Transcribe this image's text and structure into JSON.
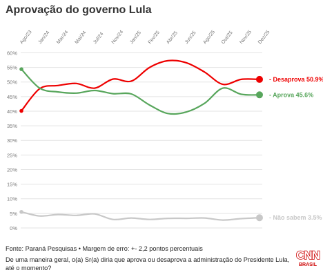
{
  "title": "Aprovação do governo Lula",
  "footer": {
    "source": "Fonte: Paraná Pesquisas • Margem de erro: +- 2,2 pontos percentuais",
    "question": "De uma maneira geral, o(a) Sr(a) diria que aprova ou desaprova a administração do Presidente Lula, até o momento?"
  },
  "logo": {
    "main": "CNN",
    "sub": "BRASIL",
    "color": "#cc0000"
  },
  "chart_data": {
    "type": "line",
    "title": "Aprovação do governo Lula",
    "x_ticks": [
      "Ago/23",
      "Jan/24",
      "Mar/24",
      "Mai/24",
      "Jul/24",
      "Nov/24",
      "Jan/25",
      "Fev/25",
      "Abr/25",
      "Jun/25",
      "Ago/25",
      "Out/25",
      "Nov/25",
      "Dez/25"
    ],
    "y_ticks": [
      "0%",
      "5%",
      "10%",
      "15%",
      "20%",
      "25%",
      "30%",
      "35%",
      "40%",
      "45%",
      "50%",
      "55%",
      "60%"
    ],
    "ylim": [
      0,
      62
    ],
    "grid": true,
    "series": [
      {
        "name": "Desaprova",
        "end_label": "Desaprova 50.9%",
        "color": "#ee0000",
        "values": [
          40.1,
          47.7,
          48.8,
          49.5,
          47.9,
          51.0,
          50.3,
          55.0,
          57.3,
          56.6,
          53.4,
          49.2,
          50.9,
          50.9
        ]
      },
      {
        "name": "Aprova",
        "end_label": "Aprova 45.6%",
        "color": "#58a65c",
        "values": [
          54.4,
          47.9,
          46.6,
          46.2,
          47.1,
          46.0,
          45.9,
          42.1,
          39.2,
          39.7,
          42.7,
          47.9,
          45.8,
          45.6
        ]
      },
      {
        "name": "Não sabem",
        "end_label": "Não sabem 3.5%",
        "color": "#c8c8c8",
        "values": [
          5.5,
          4.1,
          4.6,
          4.3,
          4.8,
          2.9,
          3.4,
          2.9,
          3.3,
          3.3,
          3.4,
          2.7,
          3.2,
          3.5
        ]
      }
    ]
  }
}
